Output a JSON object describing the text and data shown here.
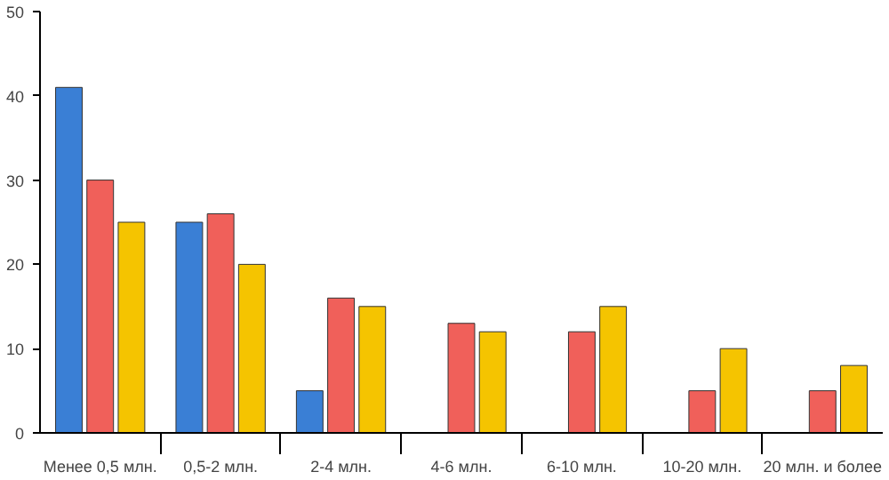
{
  "chart_data": {
    "type": "bar",
    "categories": [
      "Менее 0,5 млн.",
      "0,5-2 млн.",
      "2-4 млн.",
      "4-6 млн.",
      "6-10 млн.",
      "10-20 млн.",
      "20 млн. и более"
    ],
    "series": [
      {
        "color": "#3a7fd5",
        "values": [
          41,
          25,
          5,
          null,
          null,
          null,
          null
        ]
      },
      {
        "color": "#f0605a",
        "values": [
          30,
          26,
          16,
          13,
          12,
          5,
          5
        ]
      },
      {
        "color": "#f5c400",
        "values": [
          25,
          20,
          15,
          12,
          15,
          10,
          8
        ]
      }
    ],
    "ylim": [
      0,
      50
    ],
    "yticks": [
      0,
      10,
      20,
      30,
      40,
      50
    ],
    "grid": false
  }
}
